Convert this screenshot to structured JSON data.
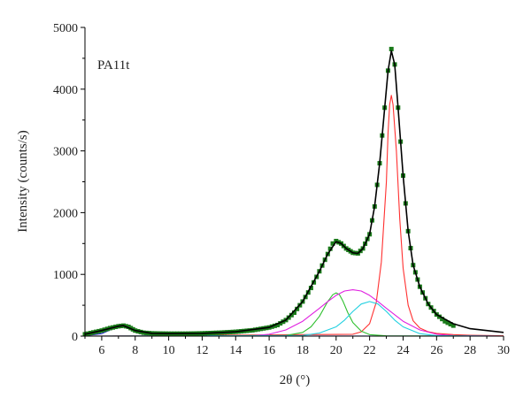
{
  "chart_data": {
    "type": "line",
    "xlabel": "2θ (°)",
    "ylabel": "Intensity (counts/s)",
    "annotation": "PA11t",
    "xlim": [
      5,
      30
    ],
    "ylim": [
      0,
      5000
    ],
    "xticks": [
      6,
      8,
      10,
      12,
      14,
      16,
      18,
      20,
      22,
      24,
      26,
      28,
      30
    ],
    "yticks": [
      0,
      1000,
      2000,
      3000,
      4000,
      5000
    ],
    "grid": false,
    "legend": "none",
    "series": [
      {
        "role": "measured",
        "color": "#1a7a1a",
        "marker": "square",
        "x": [
          5.0,
          5.5,
          6.0,
          6.5,
          7.0,
          7.3,
          7.6,
          8.0,
          8.5,
          9.0,
          10.0,
          11.0,
          12.0,
          13.0,
          14.0,
          15.0,
          16.0,
          16.5,
          17.0,
          17.5,
          18.0,
          18.5,
          19.0,
          19.5,
          19.8,
          20.0,
          20.3,
          20.6,
          21.0,
          21.3,
          21.6,
          22.0,
          22.3,
          22.6,
          22.9,
          23.1,
          23.3,
          23.5,
          23.7,
          24.0,
          24.3,
          24.6,
          25.0,
          25.5,
          26.0,
          26.5,
          27.0
        ],
        "y": [
          30,
          60,
          90,
          130,
          160,
          170,
          150,
          90,
          55,
          45,
          40,
          40,
          45,
          55,
          70,
          95,
          140,
          180,
          260,
          380,
          560,
          780,
          1050,
          1330,
          1500,
          1540,
          1500,
          1420,
          1350,
          1340,
          1420,
          1650,
          2100,
          2800,
          3700,
          4300,
          4650,
          4400,
          3700,
          2600,
          1700,
          1150,
          800,
          520,
          350,
          240,
          170
        ]
      },
      {
        "role": "fit",
        "color": "#000000",
        "x": [
          5.0,
          6.0,
          7.0,
          7.3,
          8.0,
          9.0,
          10.0,
          12.0,
          14.0,
          16.0,
          17.0,
          18.0,
          19.0,
          19.5,
          20.0,
          20.3,
          20.6,
          21.0,
          21.3,
          21.6,
          22.0,
          22.3,
          22.6,
          22.9,
          23.1,
          23.3,
          23.5,
          23.7,
          24.0,
          24.3,
          24.6,
          25.0,
          25.5,
          26.0,
          27.0,
          28.0,
          30.0
        ],
        "y": [
          30,
          90,
          160,
          170,
          90,
          45,
          40,
          45,
          70,
          140,
          260,
          560,
          1050,
          1330,
          1530,
          1500,
          1420,
          1350,
          1340,
          1420,
          1650,
          2100,
          2800,
          3700,
          4300,
          4620,
          4400,
          3700,
          2600,
          1700,
          1150,
          800,
          520,
          350,
          200,
          120,
          60
        ]
      },
      {
        "role": "peak",
        "color": "#2020d0",
        "x": [
          5.0,
          6.0,
          6.5,
          7.0,
          7.3,
          7.6,
          8.0,
          8.5,
          9.0,
          10.0,
          30.0
        ],
        "y": [
          5,
          40,
          100,
          150,
          160,
          140,
          80,
          30,
          10,
          2,
          0
        ]
      },
      {
        "role": "peak",
        "color": "#ff3030",
        "x": [
          5.0,
          21.0,
          21.5,
          22.0,
          22.4,
          22.7,
          23.0,
          23.1,
          23.2,
          23.3,
          23.4,
          23.6,
          23.8,
          24.0,
          24.3,
          24.6,
          25.0,
          25.5,
          26.0,
          27.0,
          28.0,
          29.0,
          30.0
        ],
        "y": [
          0,
          30,
          70,
          200,
          550,
          1200,
          2500,
          3300,
          3750,
          3900,
          3750,
          3000,
          1900,
          1100,
          500,
          250,
          130,
          70,
          45,
          25,
          15,
          10,
          5
        ]
      },
      {
        "role": "peak",
        "color": "#30c030",
        "x": [
          5.0,
          17.0,
          18.0,
          18.5,
          19.0,
          19.5,
          19.8,
          20.0,
          20.2,
          20.4,
          20.7,
          21.0,
          21.5,
          22.0,
          23.0,
          30.0
        ],
        "y": [
          0,
          10,
          60,
          150,
          320,
          560,
          670,
          700,
          670,
          570,
          380,
          220,
          80,
          25,
          5,
          0
        ]
      },
      {
        "role": "peak",
        "color": "#e020e0",
        "x": [
          5.0,
          15.0,
          16.0,
          17.0,
          18.0,
          19.0,
          19.5,
          20.0,
          20.5,
          21.0,
          21.5,
          22.0,
          22.5,
          23.0,
          24.0,
          25.0,
          26.0,
          27.0,
          30.0
        ],
        "y": [
          0,
          5,
          30,
          100,
          240,
          450,
          560,
          660,
          730,
          750,
          730,
          660,
          560,
          450,
          240,
          100,
          30,
          8,
          0
        ]
      },
      {
        "role": "peak",
        "color": "#20d0e0",
        "x": [
          5.0,
          18.0,
          19.0,
          20.0,
          20.5,
          21.0,
          21.5,
          22.0,
          22.5,
          23.0,
          23.5,
          24.0,
          25.0,
          26.0,
          30.0
        ],
        "y": [
          0,
          10,
          50,
          150,
          260,
          400,
          520,
          560,
          520,
          400,
          260,
          150,
          40,
          8,
          0
        ]
      }
    ]
  }
}
